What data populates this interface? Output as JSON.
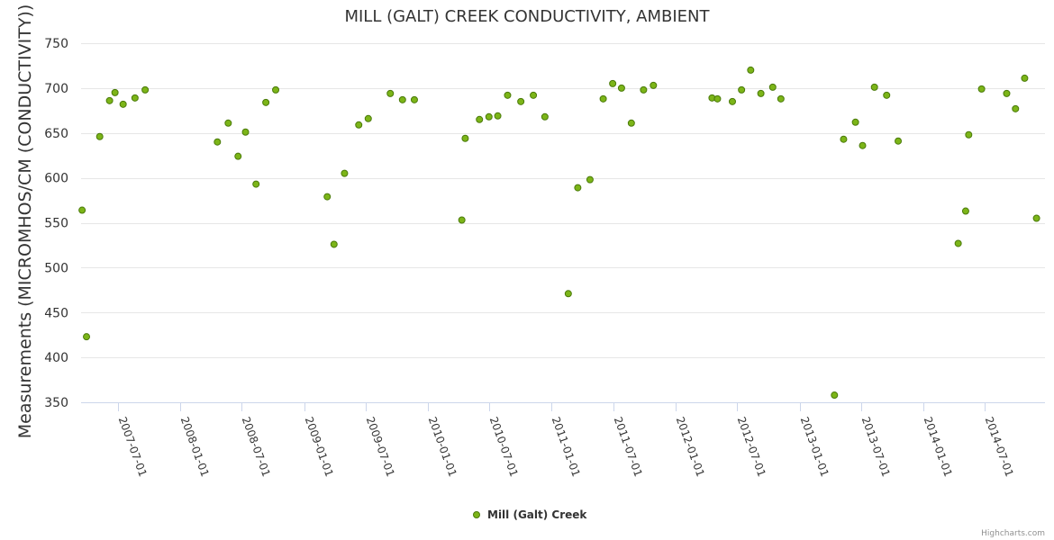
{
  "chart_data": {
    "type": "scatter",
    "title": "MILL (GALT) CREEK CONDUCTIVITY, AMBIENT",
    "ylabel": "Measurements (MICROMHOS/CM (CONDUCTIVITY))",
    "xlabel": "",
    "ylim": [
      350,
      750
    ],
    "yticks": [
      750,
      700,
      650,
      600,
      550,
      500,
      450,
      400,
      350
    ],
    "xlim": [
      "2007-03-15",
      "2014-12-26"
    ],
    "xticks": [
      "2007-07-01",
      "2008-01-01",
      "2008-07-01",
      "2009-01-01",
      "2009-07-01",
      "2010-01-01",
      "2010-07-01",
      "2011-01-01",
      "2011-07-01",
      "2012-01-01",
      "2012-07-01",
      "2013-01-01",
      "2013-07-01",
      "2014-01-01",
      "2014-07-01"
    ],
    "grid": true,
    "legend_position": "bottom-center",
    "series": [
      {
        "name": "Mill (Galt) Creek",
        "color": "#7cb518",
        "marker": "circle",
        "points": [
          {
            "x": "2007-03-18",
            "y": 564
          },
          {
            "x": "2007-03-31",
            "y": 423
          },
          {
            "x": "2007-05-09",
            "y": 646
          },
          {
            "x": "2007-06-07",
            "y": 686
          },
          {
            "x": "2007-06-23",
            "y": 695
          },
          {
            "x": "2007-07-17",
            "y": 682
          },
          {
            "x": "2007-08-21",
            "y": 689
          },
          {
            "x": "2007-09-20",
            "y": 698
          },
          {
            "x": "2008-04-20",
            "y": 640
          },
          {
            "x": "2008-05-22",
            "y": 661
          },
          {
            "x": "2008-06-20",
            "y": 624
          },
          {
            "x": "2008-07-12",
            "y": 651
          },
          {
            "x": "2008-08-12",
            "y": 593
          },
          {
            "x": "2008-09-10",
            "y": 684
          },
          {
            "x": "2008-10-09",
            "y": 698
          },
          {
            "x": "2009-03-10",
            "y": 579
          },
          {
            "x": "2009-03-30",
            "y": 526
          },
          {
            "x": "2009-04-30",
            "y": 605
          },
          {
            "x": "2009-06-11",
            "y": 659
          },
          {
            "x": "2009-07-09",
            "y": 666
          },
          {
            "x": "2009-09-12",
            "y": 694
          },
          {
            "x": "2009-10-18",
            "y": 687
          },
          {
            "x": "2009-11-22",
            "y": 687
          },
          {
            "x": "2010-04-11",
            "y": 553
          },
          {
            "x": "2010-04-21",
            "y": 644
          },
          {
            "x": "2010-06-02",
            "y": 665
          },
          {
            "x": "2010-06-30",
            "y": 668
          },
          {
            "x": "2010-07-26",
            "y": 669
          },
          {
            "x": "2010-08-24",
            "y": 692
          },
          {
            "x": "2010-10-02",
            "y": 685
          },
          {
            "x": "2010-11-08",
            "y": 692
          },
          {
            "x": "2010-12-12",
            "y": 668
          },
          {
            "x": "2011-02-19",
            "y": 471
          },
          {
            "x": "2011-03-19",
            "y": 589
          },
          {
            "x": "2011-04-24",
            "y": 598
          },
          {
            "x": "2011-06-02",
            "y": 688
          },
          {
            "x": "2011-06-30",
            "y": 705
          },
          {
            "x": "2011-07-26",
            "y": 700
          },
          {
            "x": "2011-08-24",
            "y": 661
          },
          {
            "x": "2011-09-29",
            "y": 698
          },
          {
            "x": "2011-10-28",
            "y": 703
          },
          {
            "x": "2012-04-18",
            "y": 689
          },
          {
            "x": "2012-05-04",
            "y": 688
          },
          {
            "x": "2012-06-17",
            "y": 685
          },
          {
            "x": "2012-07-14",
            "y": 698
          },
          {
            "x": "2012-08-10",
            "y": 720
          },
          {
            "x": "2012-09-09",
            "y": 694
          },
          {
            "x": "2012-10-14",
            "y": 701
          },
          {
            "x": "2012-11-07",
            "y": 688
          },
          {
            "x": "2013-04-14",
            "y": 358
          },
          {
            "x": "2013-05-11",
            "y": 643
          },
          {
            "x": "2013-06-15",
            "y": 662
          },
          {
            "x": "2013-07-06",
            "y": 636
          },
          {
            "x": "2013-08-10",
            "y": 701
          },
          {
            "x": "2013-09-15",
            "y": 692
          },
          {
            "x": "2013-10-19",
            "y": 641
          },
          {
            "x": "2014-04-14",
            "y": 527
          },
          {
            "x": "2014-05-06",
            "y": 563
          },
          {
            "x": "2014-05-15",
            "y": 648
          },
          {
            "x": "2014-06-22",
            "y": 699
          },
          {
            "x": "2014-09-04",
            "y": 694
          },
          {
            "x": "2014-09-30",
            "y": 677
          },
          {
            "x": "2014-10-27",
            "y": 711
          },
          {
            "x": "2014-12-01",
            "y": 555
          }
        ]
      }
    ]
  },
  "credits": "Highcharts.com"
}
